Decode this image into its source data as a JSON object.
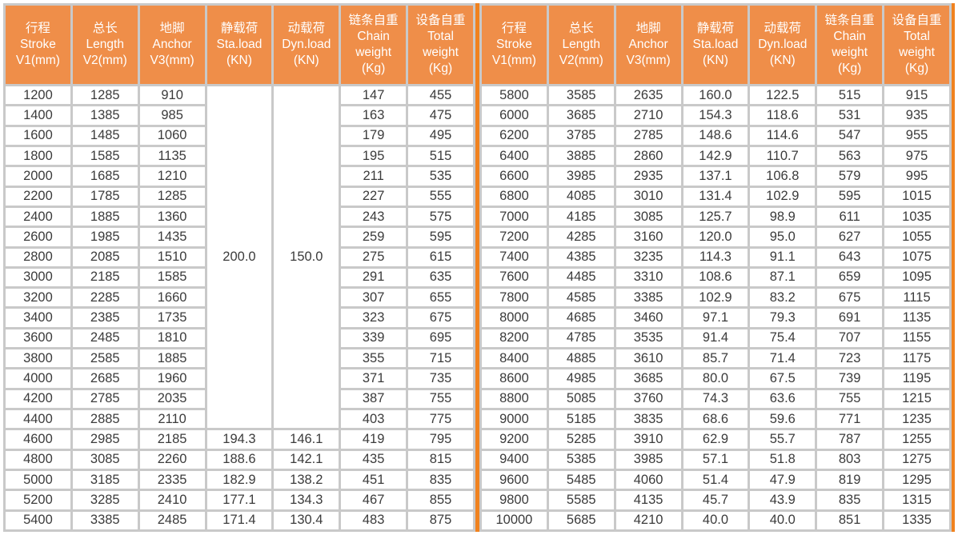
{
  "colors": {
    "header_bg": "#EF8E49",
    "divider_orange": "#F0821F",
    "grid_border_gray": "#C9C9C9",
    "body_text": "#3B3B3B",
    "header_text": "#FFFFFF"
  },
  "header_columns": [
    {
      "id": "stroke",
      "lines": [
        "行程",
        "Stroke",
        "V1(mm)"
      ]
    },
    {
      "id": "length",
      "lines": [
        "总长",
        "Length",
        "V2(mm)"
      ]
    },
    {
      "id": "anchor",
      "lines": [
        "地脚",
        "Anchor",
        "V3(mm)"
      ]
    },
    {
      "id": "sta-load",
      "lines": [
        "静载荷",
        "Sta.load",
        "(KN)"
      ]
    },
    {
      "id": "dyn-load",
      "lines": [
        "动载荷",
        "Dyn.load",
        "(KN)"
      ]
    },
    {
      "id": "chain-weight",
      "lines": [
        "链条自重",
        "Chain",
        "weight",
        "(Kg)"
      ]
    },
    {
      "id": "total-weight",
      "lines": [
        "设备自重",
        "Total",
        "weight",
        "(Kg)"
      ]
    }
  ],
  "left_table": {
    "merged": {
      "col_start": 3,
      "span": 17,
      "values": [
        "200.0",
        "150.0"
      ]
    },
    "rows": [
      [
        "1200",
        "1285",
        "910",
        null,
        null,
        "147",
        "455"
      ],
      [
        "1400",
        "1385",
        "985",
        null,
        null,
        "163",
        "475"
      ],
      [
        "1600",
        "1485",
        "1060",
        null,
        null,
        "179",
        "495"
      ],
      [
        "1800",
        "1585",
        "1135",
        null,
        null,
        "195",
        "515"
      ],
      [
        "2000",
        "1685",
        "1210",
        null,
        null,
        "211",
        "535"
      ],
      [
        "2200",
        "1785",
        "1285",
        null,
        null,
        "227",
        "555"
      ],
      [
        "2400",
        "1885",
        "1360",
        null,
        null,
        "243",
        "575"
      ],
      [
        "2600",
        "1985",
        "1435",
        null,
        null,
        "259",
        "595"
      ],
      [
        "2800",
        "2085",
        "1510",
        null,
        null,
        "275",
        "615"
      ],
      [
        "3000",
        "2185",
        "1585",
        null,
        null,
        "291",
        "635"
      ],
      [
        "3200",
        "2285",
        "1660",
        null,
        null,
        "307",
        "655"
      ],
      [
        "3400",
        "2385",
        "1735",
        null,
        null,
        "323",
        "675"
      ],
      [
        "3600",
        "2485",
        "1810",
        null,
        null,
        "339",
        "695"
      ],
      [
        "3800",
        "2585",
        "1885",
        null,
        null,
        "355",
        "715"
      ],
      [
        "4000",
        "2685",
        "1960",
        null,
        null,
        "371",
        "735"
      ],
      [
        "4200",
        "2785",
        "2035",
        null,
        null,
        "387",
        "755"
      ],
      [
        "4400",
        "2885",
        "2110",
        null,
        null,
        "403",
        "775"
      ],
      [
        "4600",
        "2985",
        "2185",
        "194.3",
        "146.1",
        "419",
        "795"
      ],
      [
        "4800",
        "3085",
        "2260",
        "188.6",
        "142.1",
        "435",
        "815"
      ],
      [
        "5000",
        "3185",
        "2335",
        "182.9",
        "138.2",
        "451",
        "835"
      ],
      [
        "5200",
        "3285",
        "2410",
        "177.1",
        "134.3",
        "467",
        "855"
      ],
      [
        "5400",
        "3385",
        "2485",
        "171.4",
        "130.4",
        "483",
        "875"
      ]
    ]
  },
  "right_table": {
    "merged": null,
    "rows": [
      [
        "5800",
        "3585",
        "2635",
        "160.0",
        "122.5",
        "515",
        "915"
      ],
      [
        "6000",
        "3685",
        "2710",
        "154.3",
        "118.6",
        "531",
        "935"
      ],
      [
        "6200",
        "3785",
        "2785",
        "148.6",
        "114.6",
        "547",
        "955"
      ],
      [
        "6400",
        "3885",
        "2860",
        "142.9",
        "110.7",
        "563",
        "975"
      ],
      [
        "6600",
        "3985",
        "2935",
        "137.1",
        "106.8",
        "579",
        "995"
      ],
      [
        "6800",
        "4085",
        "3010",
        "131.4",
        "102.9",
        "595",
        "1015"
      ],
      [
        "7000",
        "4185",
        "3085",
        "125.7",
        "98.9",
        "611",
        "1035"
      ],
      [
        "7200",
        "4285",
        "3160",
        "120.0",
        "95.0",
        "627",
        "1055"
      ],
      [
        "7400",
        "4385",
        "3235",
        "114.3",
        "91.1",
        "643",
        "1075"
      ],
      [
        "7600",
        "4485",
        "3310",
        "108.6",
        "87.1",
        "659",
        "1095"
      ],
      [
        "7800",
        "4585",
        "3385",
        "102.9",
        "83.2",
        "675",
        "1115"
      ],
      [
        "8000",
        "4685",
        "3460",
        "97.1",
        "79.3",
        "691",
        "1135"
      ],
      [
        "8200",
        "4785",
        "3535",
        "91.4",
        "75.4",
        "707",
        "1155"
      ],
      [
        "8400",
        "4885",
        "3610",
        "85.7",
        "71.4",
        "723",
        "1175"
      ],
      [
        "8600",
        "4985",
        "3685",
        "80.0",
        "67.5",
        "739",
        "1195"
      ],
      [
        "8800",
        "5085",
        "3760",
        "74.3",
        "63.6",
        "755",
        "1215"
      ],
      [
        "9000",
        "5185",
        "3835",
        "68.6",
        "59.6",
        "771",
        "1235"
      ],
      [
        "9200",
        "5285",
        "3910",
        "62.9",
        "55.7",
        "787",
        "1255"
      ],
      [
        "9400",
        "5385",
        "3985",
        "57.1",
        "51.8",
        "803",
        "1275"
      ],
      [
        "9600",
        "5485",
        "4060",
        "51.4",
        "47.9",
        "819",
        "1295"
      ],
      [
        "9800",
        "5585",
        "4135",
        "45.7",
        "43.9",
        "835",
        "1315"
      ],
      [
        "10000",
        "5685",
        "4210",
        "40.0",
        "40.0",
        "851",
        "1335"
      ]
    ]
  }
}
